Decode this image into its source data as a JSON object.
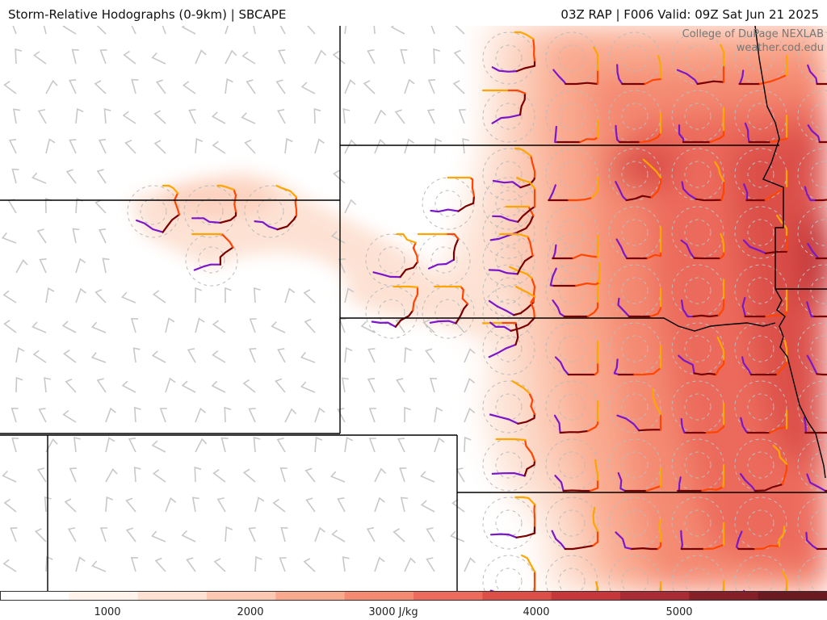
{
  "header": {
    "title": "Storm-Relative Hodographs (0-9km) | SBCAPE",
    "run_info": "03Z RAP | F006 Valid: 09Z Sat Jun 21 2025"
  },
  "credit": {
    "line1": "College of DuPage NEXLAB",
    "line2": "weather.cod.edu"
  },
  "colorbar": {
    "unit": "J/kg",
    "min": 0,
    "max": 6000,
    "ticks": [
      "1000",
      "2000",
      "3000 J/kg",
      "4000",
      "5000"
    ],
    "tick_values": [
      1000,
      2000,
      3000,
      4000,
      5000
    ],
    "colors": [
      "#ffffff",
      "#fff3ec",
      "#fde2d4",
      "#fcc8b2",
      "#f9a98e",
      "#f48a72",
      "#ec6b5c",
      "#dc4f48",
      "#c5373a",
      "#a92b34",
      "#852028",
      "#6b1a22"
    ]
  },
  "colors": {
    "hodo_low": "#7b16c9",
    "hodo_mid": "#7a0000",
    "hodo_upper": "#ff4500",
    "hodo_top": "#ffa500",
    "barb": "#c8c8c8",
    "border": "#000000"
  }
}
